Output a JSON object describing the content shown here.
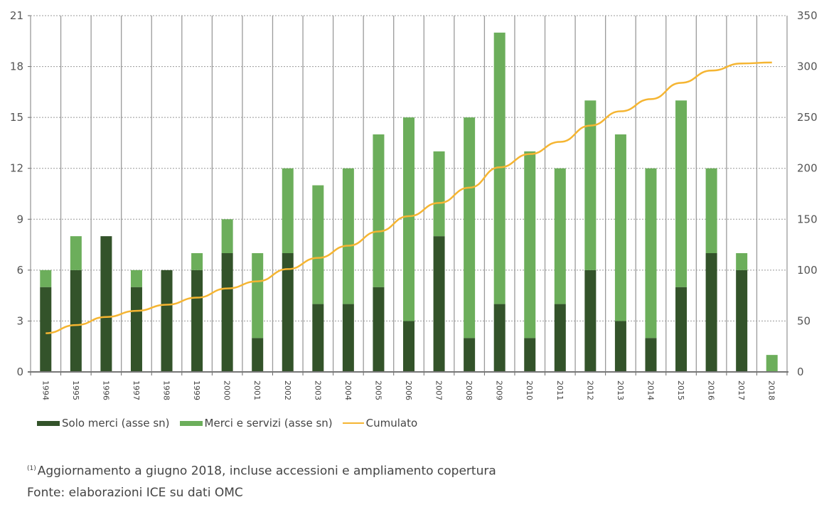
{
  "chart_data": {
    "type": "bar",
    "stacked": true,
    "categories": [
      "1994",
      "1995",
      "1996",
      "1997",
      "1998",
      "1999",
      "2000",
      "2001",
      "2002",
      "2003",
      "2004",
      "2005",
      "2006",
      "2007",
      "2008",
      "2009",
      "2010",
      "2011",
      "2012",
      "2013",
      "2014",
      "2015",
      "2016",
      "2017",
      "2018"
    ],
    "series": [
      {
        "name": "Solo merci (asse sn)",
        "axis": "left",
        "color": "#33532a",
        "values": [
          5,
          6,
          8,
          5,
          6,
          6,
          7,
          2,
          7,
          4,
          4,
          5,
          3,
          8,
          2,
          4,
          2,
          4,
          6,
          3,
          2,
          5,
          7,
          6,
          0
        ]
      },
      {
        "name": "Merci e servizi (asse sn)",
        "axis": "left",
        "color": "#6cae5b",
        "values": [
          1,
          2,
          0,
          1,
          0,
          1,
          2,
          5,
          5,
          7,
          8,
          9,
          12,
          5,
          13,
          16,
          11,
          8,
          10,
          11,
          10,
          11,
          5,
          1,
          1
        ]
      },
      {
        "name": "Cumulato",
        "axis": "right",
        "type": "line",
        "color": "#f5b532",
        "values": [
          38,
          46,
          54,
          60,
          66,
          73,
          82,
          89,
          101,
          112,
          124,
          138,
          153,
          166,
          181,
          201,
          214,
          226,
          242,
          256,
          268,
          284,
          296,
          303,
          304
        ]
      }
    ],
    "left_axis": {
      "ylim": [
        0,
        21
      ],
      "ticks": [
        "0",
        "3",
        "6",
        "9",
        "12",
        "15",
        "18",
        "21"
      ]
    },
    "right_axis": {
      "ylim": [
        0,
        350
      ],
      "ticks": [
        "0",
        "50",
        "100",
        "150",
        "200",
        "250",
        "300",
        "350"
      ]
    },
    "grid": true,
    "legend_position": "bottom-left"
  },
  "legend": {
    "items": [
      "Solo merci (asse sn)",
      "Merci e servizi (asse sn)",
      "Cumulato"
    ]
  },
  "notes": {
    "footnote_mark": "(1)",
    "footnote": "Aggiornamento a giugno 2018, incluse  accessioni e ampliamento copertura",
    "source": "Fonte: elaborazioni ICE su dati OMC"
  }
}
